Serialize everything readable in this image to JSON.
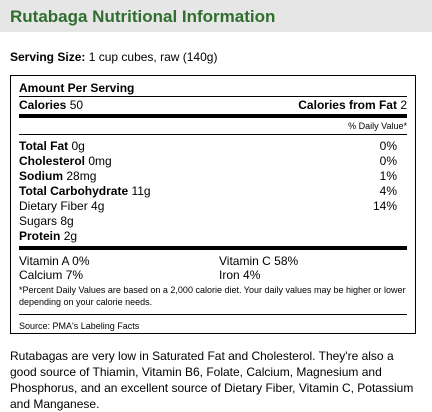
{
  "title": "Rutabaga Nutritional Information",
  "serving": {
    "label": "Serving Size:",
    "value": "1 cup cubes, raw (140g)"
  },
  "facts": {
    "amount_header": "Amount Per Serving",
    "calories": {
      "label": "Calories",
      "value": "50"
    },
    "calories_from_fat": {
      "label": "Calories from Fat",
      "value": "2"
    },
    "daily_value_header": "% Daily Value*",
    "nutrients": [
      {
        "name": "Total Fat",
        "amount": "0g",
        "dv": "0%",
        "bold": true
      },
      {
        "name": "Cholesterol",
        "amount": "0mg",
        "dv": "0%",
        "bold": true
      },
      {
        "name": "Sodium",
        "amount": "28mg",
        "dv": "1%",
        "bold": true
      },
      {
        "name": "Total Carbohydrate",
        "amount": "11g",
        "dv": "4%",
        "bold": true
      },
      {
        "name": "Dietary Fiber",
        "amount": "4g",
        "dv": "14%",
        "indent": true
      },
      {
        "name": "Sugars",
        "amount": "8g",
        "indent": true
      },
      {
        "name": "Protein",
        "amount": "2g",
        "bold": true
      }
    ],
    "vitamins": [
      {
        "name": "Vitamin A",
        "value": "0%"
      },
      {
        "name": "Vitamin C",
        "value": "58%"
      },
      {
        "name": "Calcium",
        "value": "7%"
      },
      {
        "name": "Iron",
        "value": "4%"
      }
    ],
    "footnote": "*Percent Daily Values are based on a 2,000 calorie diet. Your daily values may be higher or lower depending on your calorie needs.",
    "source": "Source: PMA's Labeling Facts"
  },
  "description": "Rutabagas are very low in Saturated Fat and Cholesterol. They're also a good source of Thiamin, Vitamin B6, Folate, Calcium, Magnesium and Phosphorus, and an excellent source of Dietary Fiber, Vitamin C, Potassium and Manganese."
}
